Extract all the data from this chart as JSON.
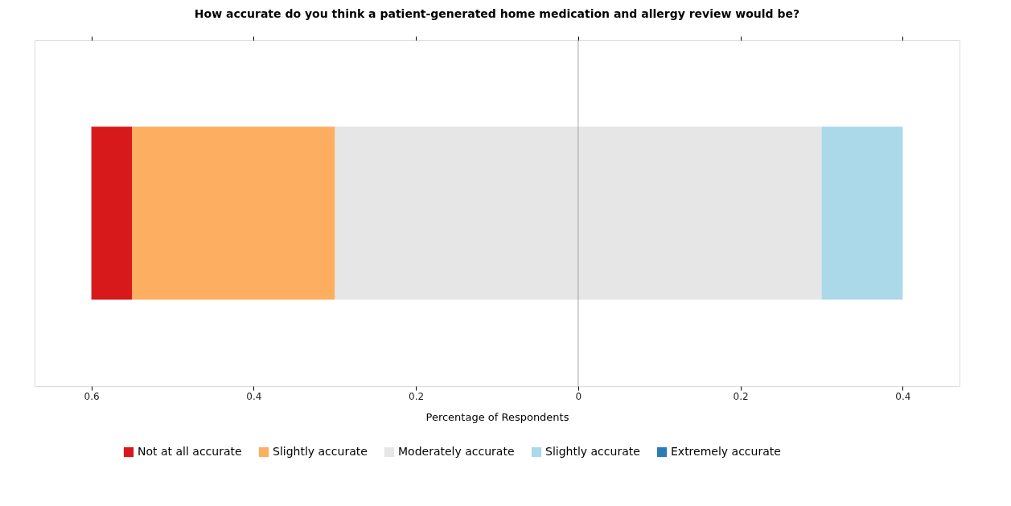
{
  "chart_data": {
    "type": "bar",
    "orientation": "horizontal",
    "stacked": true,
    "title": "How accurate do you think a patient-generated home medication and allergy review would be?",
    "xlabel": "Percentage of Respondents",
    "categories": [
      null
    ],
    "series": [
      {
        "name": "Moderately accurate",
        "color": "#e6e6e6",
        "values": [
          -0.3
        ]
      },
      {
        "color": "#e6e6e6",
        "values": [
          0.3
        ]
      },
      {
        "name": "Slightly accurate",
        "color": "#fdae61",
        "values": [
          -0.25
        ]
      },
      {
        "name": "Slightly accurate",
        "color": "#abd9e9",
        "values": [
          0.1
        ]
      },
      {
        "name": "Not at all accurate",
        "color": "#d7191c",
        "values": [
          -0.05
        ]
      },
      {
        "name": "Extremely accurate",
        "color": "#2c7bb6",
        "values": [
          0
        ]
      }
    ],
    "xlim": [
      -0.67,
      0.47
    ],
    "xticks": [
      {
        "value": -0.6,
        "label": "0.6"
      },
      {
        "value": -0.4,
        "label": "0.4"
      },
      {
        "value": -0.2,
        "label": "0.2"
      },
      0,
      0.2,
      0.4
    ],
    "ref_lines": [
      {
        "axis": "x",
        "value": 0,
        "color": "#a0a0a0"
      }
    ],
    "tick_labels": "x",
    "grid": false,
    "legend": "bottom"
  }
}
